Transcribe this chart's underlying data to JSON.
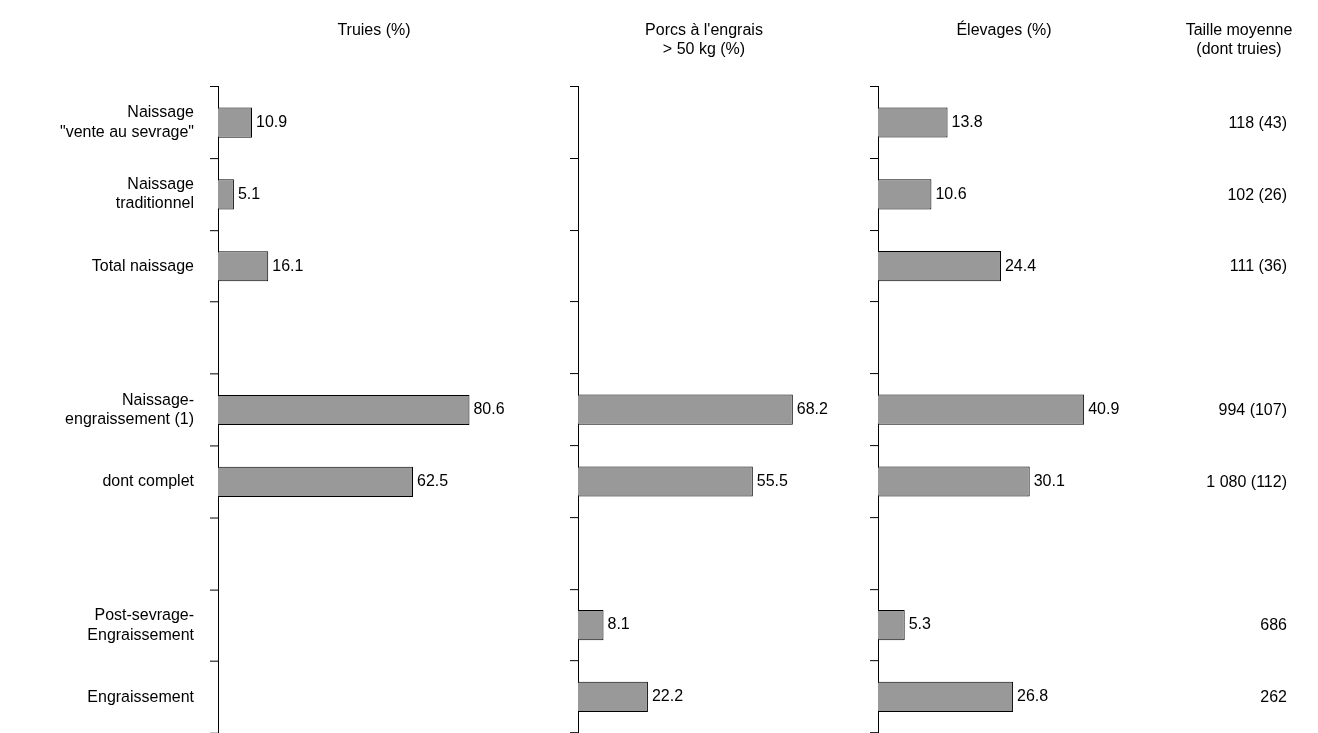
{
  "chart_data": [
    {
      "type": "bar",
      "orientation": "horizontal",
      "title": "Truies (%)",
      "categories": [
        "Naissage\n\"vente au sevrage\"",
        "Naissage\ntraditionnel",
        "Total naissage",
        null,
        "Naissage-\nengraissement (1)",
        "dont complet",
        null,
        "Post-sevrage-\nEngraissement",
        "Engraissement"
      ],
      "values": [
        10.9,
        5.1,
        16.1,
        null,
        80.6,
        62.5,
        null,
        null,
        null
      ],
      "color": "#999999",
      "data_labels": true
    },
    {
      "type": "bar",
      "orientation": "horizontal",
      "title": "Porcs à l'engrais\n> 50 kg (%)",
      "values": [
        null,
        null,
        null,
        null,
        68.2,
        55.5,
        null,
        8.1,
        22.2
      ],
      "color": "#999999",
      "data_labels": true
    },
    {
      "type": "bar",
      "orientation": "horizontal",
      "title": "Élevages (%)",
      "values": [
        13.8,
        10.6,
        24.4,
        null,
        40.9,
        30.1,
        null,
        5.3,
        26.8
      ],
      "color": "#999999",
      "data_labels": true
    },
    {
      "type": "other",
      "title": "Taille moyenne\n(dont truies)",
      "annotations": [
        "118 (43)",
        "102 (26)",
        "111 (36)",
        "994 (107)",
        "1 080 (112)",
        "686",
        "262"
      ]
    }
  ]
}
